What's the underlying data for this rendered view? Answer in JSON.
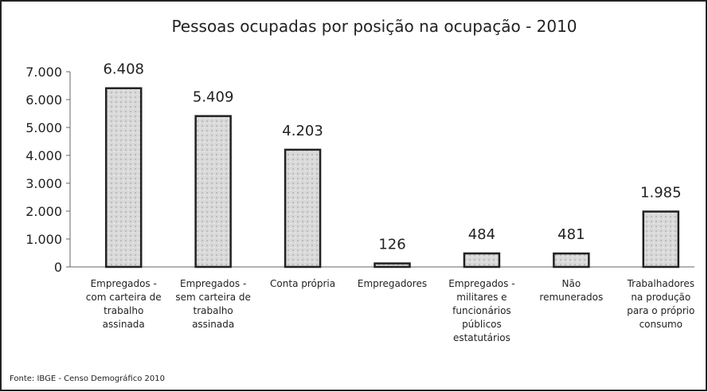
{
  "chart_data": {
    "type": "bar",
    "title": "Pessoas ocupadas por posição na ocupação - 2010",
    "categories": [
      "Empregados -\ncom carteira de\ntrabalho\nassinada",
      "Empregados -\nsem carteira de\ntrabalho\nassinada",
      "Conta própria",
      "Empregadores",
      "Empregados -\nmilitares e\nfuncionários\npúblicos\nestatutários",
      "Não\nremunerados",
      "Trabalhadores\nna produção\npara o próprio\nconsumo"
    ],
    "values": [
      6408,
      5409,
      4203,
      126,
      484,
      481,
      1985
    ],
    "value_labels": [
      "6.408",
      "5.409",
      "4.203",
      "126",
      "484",
      "481",
      "1.985"
    ],
    "color": "#d9d9d9",
    "ylim": [
      0,
      7000
    ],
    "yticks": [
      0,
      {
        "value": 1000,
        "label": "1.000"
      },
      {
        "value": 2000,
        "label": "2.000"
      },
      {
        "value": 3000,
        "label": "3.000"
      },
      {
        "value": 4000,
        "label": "4.000"
      },
      {
        "value": 5000,
        "label": "5.000"
      },
      {
        "value": 6000,
        "label": "6.000"
      },
      {
        "value": 7000,
        "label": "7.000"
      }
    ],
    "source": "Fonte: IBGE - Censo Demográfico 2010"
  }
}
